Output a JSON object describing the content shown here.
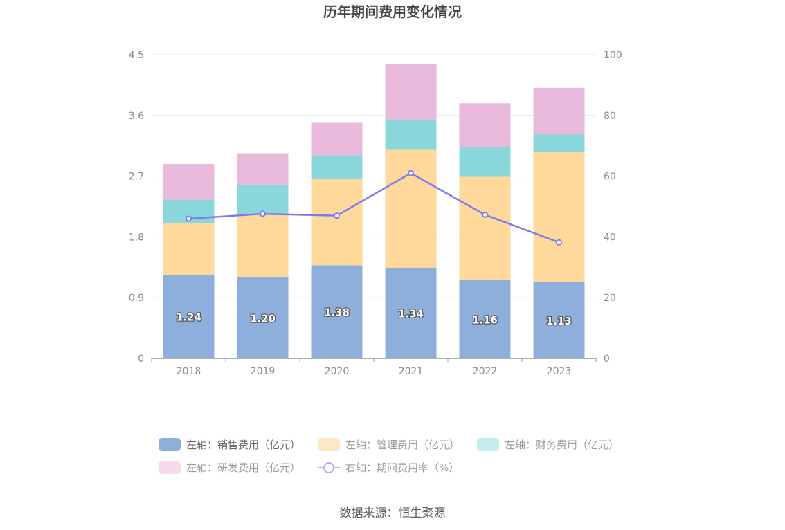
{
  "chart_data": {
    "type": "bar",
    "title": "历年期间费用变化情况",
    "categories": [
      "2018",
      "2019",
      "2020",
      "2021",
      "2022",
      "2023"
    ],
    "y_left": {
      "ylim": [
        0,
        4.5
      ],
      "ticks": [
        "0",
        "0.9",
        "1.8",
        "2.7",
        "3.6",
        "4.5"
      ]
    },
    "y_right": {
      "ylim": [
        0,
        100
      ],
      "ticks": [
        "0",
        "20",
        "40",
        "60",
        "80",
        "100"
      ]
    },
    "series": [
      {
        "name": "左轴：销售费用（亿元）",
        "type": "bar",
        "axis": "left",
        "color": "#8eaedb",
        "values": [
          1.24,
          1.2,
          1.38,
          1.34,
          1.16,
          1.13
        ],
        "labels": [
          "1.24",
          "1.20",
          "1.38",
          "1.34",
          "1.16",
          "1.13"
        ]
      },
      {
        "name": "左轴：管理费用（亿元）",
        "type": "bar",
        "axis": "left",
        "color": "#fed99b",
        "values": [
          0.76,
          0.93,
          1.28,
          1.75,
          1.53,
          1.93
        ]
      },
      {
        "name": "左轴：财务费用（亿元）",
        "type": "bar",
        "axis": "left",
        "color": "#89d6db",
        "values": [
          0.35,
          0.44,
          0.35,
          0.45,
          0.44,
          0.26
        ]
      },
      {
        "name": "左轴：研发费用（亿元）",
        "type": "bar",
        "axis": "left",
        "color": "#e8b9db",
        "values": [
          0.53,
          0.47,
          0.48,
          0.82,
          0.65,
          0.69
        ]
      },
      {
        "name": "右轴：期间费用率（%）",
        "type": "line",
        "axis": "right",
        "color": "#7b7bef",
        "values": [
          46.0,
          47.6,
          47.0,
          61.0,
          47.3,
          38.2
        ]
      }
    ],
    "legend_position": "bottom",
    "grid": true
  },
  "source": "数据来源：恒生聚源"
}
